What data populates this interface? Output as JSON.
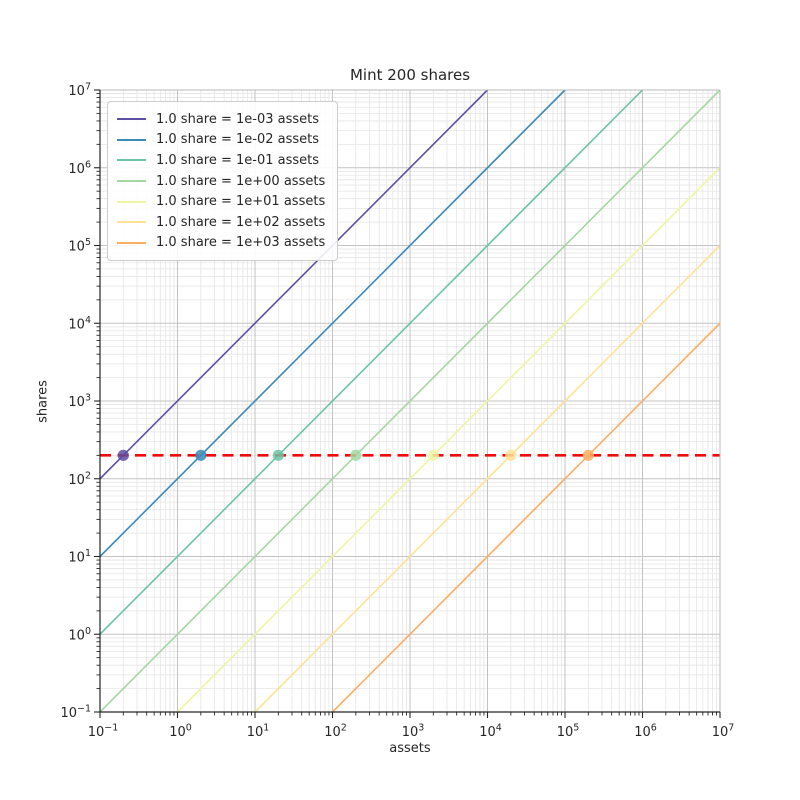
{
  "chart_data": {
    "type": "line",
    "title": "Mint 200 shares",
    "xlabel": "assets",
    "ylabel": "shares",
    "x_scale": "log",
    "y_scale": "log",
    "xlim": [
      0.1,
      10000000
    ],
    "ylim": [
      0.1,
      10000000
    ],
    "x_tick_exponents": [
      -1,
      0,
      1,
      2,
      3,
      4,
      5,
      6,
      7
    ],
    "y_tick_exponents": [
      -1,
      0,
      1,
      2,
      3,
      4,
      5,
      6,
      7
    ],
    "grid": {
      "major_color": "#c3c3c3",
      "minor_color": "#e5e5e5"
    },
    "legend_position": "upper-left",
    "series": [
      {
        "label": "1.0 share = 1e-03 assets",
        "assets_per_share": 0.001,
        "color": "#5e4fa2",
        "marker": {
          "assets": 0.2,
          "shares": 200
        }
      },
      {
        "label": "1.0 share = 1e-02 assets",
        "assets_per_share": 0.01,
        "color": "#3a89b9",
        "marker": {
          "assets": 2,
          "shares": 200
        }
      },
      {
        "label": "1.0 share = 1e-01 assets",
        "assets_per_share": 0.1,
        "color": "#6cc4a4",
        "marker": {
          "assets": 20,
          "shares": 200
        }
      },
      {
        "label": "1.0 share = 1e+00 assets",
        "assets_per_share": 1,
        "color": "#a3d8a0",
        "marker": {
          "assets": 200,
          "shares": 200
        }
      },
      {
        "label": "1.0 share = 1e+01 assets",
        "assets_per_share": 10,
        "color": "#eef6a2",
        "marker": {
          "assets": 2000,
          "shares": 200
        }
      },
      {
        "label": "1.0 share = 1e+02 assets",
        "assets_per_share": 100,
        "color": "#fee395",
        "marker": {
          "assets": 20000,
          "shares": 200
        }
      },
      {
        "label": "1.0 share = 1e+03 assets",
        "assets_per_share": 1000,
        "color": "#fdae61",
        "marker": {
          "assets": 200000,
          "shares": 200
        }
      }
    ],
    "target_line": {
      "shares": 200,
      "color": "#ee0c0c",
      "style": "dashed",
      "linewidth": 2.6
    }
  }
}
